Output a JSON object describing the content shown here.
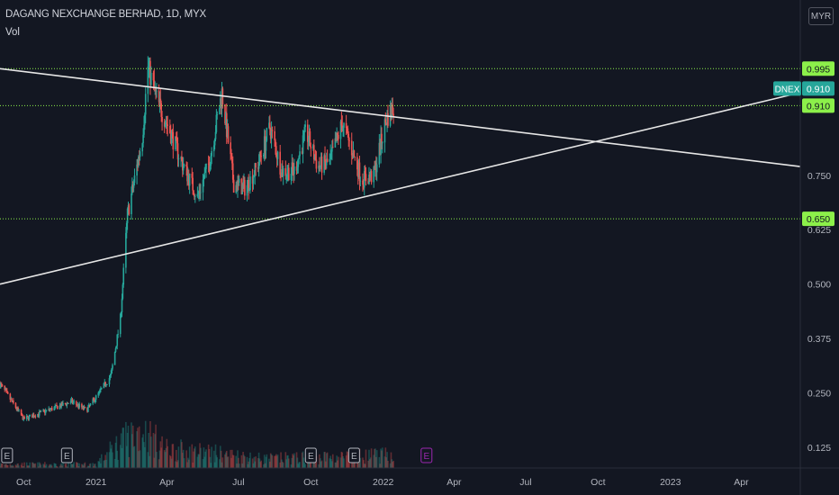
{
  "header": {
    "symbol_title": "DAGANG NEXCHANGE BERHAD, 1D, MYX",
    "volume_label": "Vol",
    "currency": "MYR"
  },
  "colors": {
    "background": "#131722",
    "up": "#26a69a",
    "down": "#ef5350",
    "level_line": "#8cf04a",
    "trendline": "#e6e6e6",
    "ticker_badge": "#26a69a",
    "earnings_upcoming": "#9c27b0"
  },
  "chart_data": {
    "type": "candlestick",
    "symbol": "DNEX",
    "title": "DAGANG NEXCHANGE BERHAD, 1D, MYX",
    "currency": "MYR",
    "x_axis": {
      "ticks": [
        "Oct",
        "2021",
        "Apr",
        "Jul",
        "Oct",
        "2022",
        "Apr",
        "Jul",
        "Oct",
        "2023",
        "Apr"
      ],
      "tick_dates": [
        "2020-10-01",
        "2021-01-01",
        "2021-04-01",
        "2021-07-01",
        "2021-10-01",
        "2022-01-01",
        "2022-04-01",
        "2022-07-01",
        "2022-10-01",
        "2023-01-01",
        "2023-04-01"
      ],
      "range": [
        "2020-09-01",
        "2023-06-15"
      ]
    },
    "y_axis": {
      "ticks": [
        "0.125",
        "0.250",
        "0.375",
        "0.500",
        "0.625",
        "0.750"
      ],
      "tick_values": [
        0.125,
        0.25,
        0.375,
        0.5,
        0.625,
        0.75
      ],
      "range": [
        0.1,
        1.05
      ]
    },
    "levels": [
      {
        "label": "0.995",
        "value": 0.995
      },
      {
        "label": "0.910",
        "value": 0.91
      },
      {
        "label": "0.650",
        "value": 0.65
      }
    ],
    "last_price": {
      "ticker": "DNEX",
      "label": "0.910",
      "value": 0.91
    },
    "trendlines": [
      {
        "from": {
          "date": "2020-09-01",
          "value": 0.995
        },
        "to": {
          "date": "2023-06-15",
          "value": 0.77
        }
      },
      {
        "from": {
          "date": "2020-09-01",
          "value": 0.5
        },
        "to": {
          "date": "2023-06-15",
          "value": 0.94
        }
      }
    ],
    "earnings_markers": [
      {
        "label": "E",
        "date": "2020-09-10"
      },
      {
        "label": "E",
        "date": "2020-11-25"
      },
      {
        "label": "E",
        "date": "2021-10-01"
      },
      {
        "label": "E",
        "date": "2021-11-25"
      },
      {
        "label": "E",
        "date": "2022-02-25",
        "upcoming": true
      }
    ],
    "price_path": [
      {
        "date": "2020-09-01",
        "close": 0.27
      },
      {
        "date": "2020-10-01",
        "close": 0.19
      },
      {
        "date": "2020-11-01",
        "close": 0.21
      },
      {
        "date": "2020-12-01",
        "close": 0.23
      },
      {
        "date": "2020-12-20",
        "close": 0.21
      },
      {
        "date": "2021-01-05",
        "close": 0.25
      },
      {
        "date": "2021-01-20",
        "close": 0.29
      },
      {
        "date": "2021-02-01",
        "close": 0.42
      },
      {
        "date": "2021-02-10",
        "close": 0.66
      },
      {
        "date": "2021-02-20",
        "close": 0.75
      },
      {
        "date": "2021-03-01",
        "close": 0.84
      },
      {
        "date": "2021-03-08",
        "close": 1.0
      },
      {
        "date": "2021-03-20",
        "close": 0.92
      },
      {
        "date": "2021-04-01",
        "close": 0.87
      },
      {
        "date": "2021-04-20",
        "close": 0.78
      },
      {
        "date": "2021-05-10",
        "close": 0.7
      },
      {
        "date": "2021-05-25",
        "close": 0.78
      },
      {
        "date": "2021-06-10",
        "close": 0.94
      },
      {
        "date": "2021-06-25",
        "close": 0.73
      },
      {
        "date": "2021-07-10",
        "close": 0.72
      },
      {
        "date": "2021-07-25",
        "close": 0.77
      },
      {
        "date": "2021-08-10",
        "close": 0.86
      },
      {
        "date": "2021-08-25",
        "close": 0.76
      },
      {
        "date": "2021-09-10",
        "close": 0.76
      },
      {
        "date": "2021-09-25",
        "close": 0.85
      },
      {
        "date": "2021-10-10",
        "close": 0.77
      },
      {
        "date": "2021-10-25",
        "close": 0.78
      },
      {
        "date": "2021-11-10",
        "close": 0.87
      },
      {
        "date": "2021-11-20",
        "close": 0.82
      },
      {
        "date": "2021-12-05",
        "close": 0.74
      },
      {
        "date": "2021-12-20",
        "close": 0.75
      },
      {
        "date": "2022-01-05",
        "close": 0.88
      },
      {
        "date": "2022-01-15",
        "close": 0.91
      }
    ],
    "volume_path": [
      {
        "date": "2021-01-01",
        "rel": 0.1
      },
      {
        "date": "2021-02-01",
        "rel": 0.7
      },
      {
        "date": "2021-03-01",
        "rel": 1.0
      },
      {
        "date": "2021-04-01",
        "rel": 0.5
      },
      {
        "date": "2021-06-01",
        "rel": 0.4
      },
      {
        "date": "2021-08-01",
        "rel": 0.25
      },
      {
        "date": "2021-11-01",
        "rel": 0.3
      },
      {
        "date": "2022-01-15",
        "rel": 0.35
      }
    ]
  }
}
